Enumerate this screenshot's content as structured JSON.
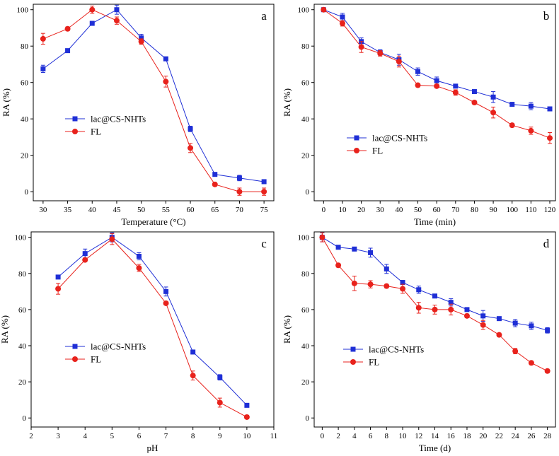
{
  "chart_data": [
    {
      "type": "line",
      "panel": "a",
      "xlabel": "Temperature (°C)",
      "ylabel": "RA (%)",
      "xlim": [
        28,
        77
      ],
      "ylim": [
        -5,
        103
      ],
      "xticks": [
        30,
        35,
        40,
        45,
        50,
        55,
        60,
        65,
        70,
        75
      ],
      "yticks": [
        0,
        20,
        40,
        60,
        80,
        100
      ],
      "legend_position": "center-left",
      "series": [
        {
          "name": "lac@CS-NHTs",
          "color": "#1f2fd6",
          "marker": "square",
          "x": [
            30,
            35,
            40,
            45,
            50,
            55,
            60,
            65,
            70,
            75
          ],
          "y": [
            67.5,
            77.5,
            92.5,
            100,
            84.5,
            73,
            34.5,
            9.5,
            7.5,
            5.5
          ],
          "err": [
            2,
            1,
            1,
            2.5,
            2,
            1,
            1.5,
            1,
            1.5,
            1
          ]
        },
        {
          "name": "FL",
          "color": "#e8221c",
          "marker": "circle",
          "x": [
            30,
            35,
            40,
            45,
            50,
            55,
            60,
            65,
            70,
            75
          ],
          "y": [
            84,
            89.5,
            100,
            94,
            82.5,
            60.5,
            24,
            4,
            0,
            0
          ],
          "err": [
            3,
            1,
            2,
            2,
            1.5,
            3,
            2.5,
            1,
            2,
            2
          ]
        }
      ]
    },
    {
      "type": "line",
      "panel": "b",
      "xlabel": "Time (min)",
      "ylabel": "RA (%)",
      "xlim": [
        -5,
        123
      ],
      "ylim": [
        -5,
        103
      ],
      "xticks": [
        0,
        10,
        20,
        30,
        40,
        50,
        60,
        70,
        80,
        90,
        100,
        110,
        120
      ],
      "yticks": [
        0,
        20,
        40,
        60,
        80,
        100
      ],
      "legend_position": "center-left",
      "series": [
        {
          "name": "lac@CS-NHTs",
          "color": "#1f2fd6",
          "marker": "square",
          "x": [
            0,
            10,
            20,
            30,
            40,
            50,
            60,
            70,
            80,
            90,
            100,
            110,
            120
          ],
          "y": [
            100,
            96,
            82.5,
            76.5,
            72.5,
            66,
            61,
            58,
            55,
            52,
            48,
            47,
            45.5
          ],
          "err": [
            1,
            2,
            2,
            1.5,
            3,
            2,
            2,
            1,
            1,
            3,
            1,
            2,
            1
          ]
        },
        {
          "name": "FL",
          "color": "#e8221c",
          "marker": "circle",
          "x": [
            0,
            10,
            20,
            30,
            40,
            50,
            60,
            70,
            80,
            90,
            100,
            110,
            120
          ],
          "y": [
            100,
            92.5,
            79.5,
            76,
            71.5,
            58.5,
            58,
            54.5,
            49,
            43.5,
            36.5,
            33.5,
            29.5
          ],
          "err": [
            1,
            1.5,
            3,
            1.5,
            3,
            1,
            1,
            1.5,
            1,
            3,
            1,
            2,
            3
          ]
        }
      ]
    },
    {
      "type": "line",
      "panel": "c",
      "xlabel": "pH",
      "ylabel": "RA (%)",
      "xlim": [
        2,
        11
      ],
      "ylim": [
        -5,
        103
      ],
      "xticks": [
        2,
        3,
        4,
        5,
        6,
        7,
        8,
        9,
        10,
        11
      ],
      "yticks": [
        0,
        20,
        40,
        60,
        80,
        100
      ],
      "legend_position": "center-right",
      "series": [
        {
          "name": "lac@CS-NHTs",
          "color": "#1f2fd6",
          "marker": "square",
          "x": [
            3,
            4,
            5,
            6,
            7,
            8,
            9,
            10
          ],
          "y": [
            78,
            91,
            100,
            89.5,
            70,
            36.5,
            22.5,
            7
          ],
          "err": [
            1,
            2.5,
            2.5,
            2,
            2.5,
            1,
            1.5,
            1
          ]
        },
        {
          "name": "FL",
          "color": "#e8221c",
          "marker": "circle",
          "x": [
            3,
            4,
            5,
            6,
            7,
            8,
            9,
            10
          ],
          "y": [
            71.5,
            87.5,
            99,
            83,
            63.5,
            23.5,
            8.5,
            0.5
          ],
          "err": [
            3,
            1,
            3,
            2,
            1,
            2.5,
            2.5,
            1
          ]
        }
      ]
    },
    {
      "type": "line",
      "panel": "d",
      "xlabel": "Time (d)",
      "ylabel": "RA (%)",
      "xlim": [
        -1,
        29
      ],
      "ylim": [
        -5,
        103
      ],
      "xticks": [
        0,
        2,
        4,
        6,
        8,
        10,
        12,
        14,
        16,
        18,
        20,
        22,
        24,
        26,
        28
      ],
      "yticks": [
        0,
        20,
        40,
        60,
        80,
        100
      ],
      "legend_position": "center-left",
      "series": [
        {
          "name": "lac@CS-NHTs",
          "color": "#1f2fd6",
          "marker": "square",
          "x": [
            0,
            2,
            4,
            6,
            8,
            10,
            12,
            14,
            16,
            18,
            20,
            22,
            24,
            26,
            28
          ],
          "y": [
            100,
            94.5,
            93.5,
            91.5,
            82.5,
            75,
            71,
            67.5,
            64,
            60,
            56.5,
            55,
            52.5,
            51,
            48.5
          ],
          "err": [
            2.5,
            1,
            1,
            2.5,
            2.5,
            1,
            2,
            1,
            2,
            1,
            3,
            1,
            2,
            2,
            1.5
          ]
        },
        {
          "name": "FL",
          "color": "#e8221c",
          "marker": "circle",
          "x": [
            0,
            2,
            4,
            6,
            8,
            10,
            12,
            14,
            16,
            18,
            20,
            22,
            24,
            26,
            28
          ],
          "y": [
            100,
            84.5,
            74.5,
            74,
            73,
            71.5,
            61,
            60,
            60,
            56.5,
            51.5,
            46,
            37,
            30.5,
            26
          ],
          "err": [
            2.5,
            1,
            4,
            2,
            1,
            2.5,
            3,
            2.5,
            3,
            1,
            2.5,
            1,
            1.5,
            1,
            1
          ]
        }
      ]
    }
  ]
}
